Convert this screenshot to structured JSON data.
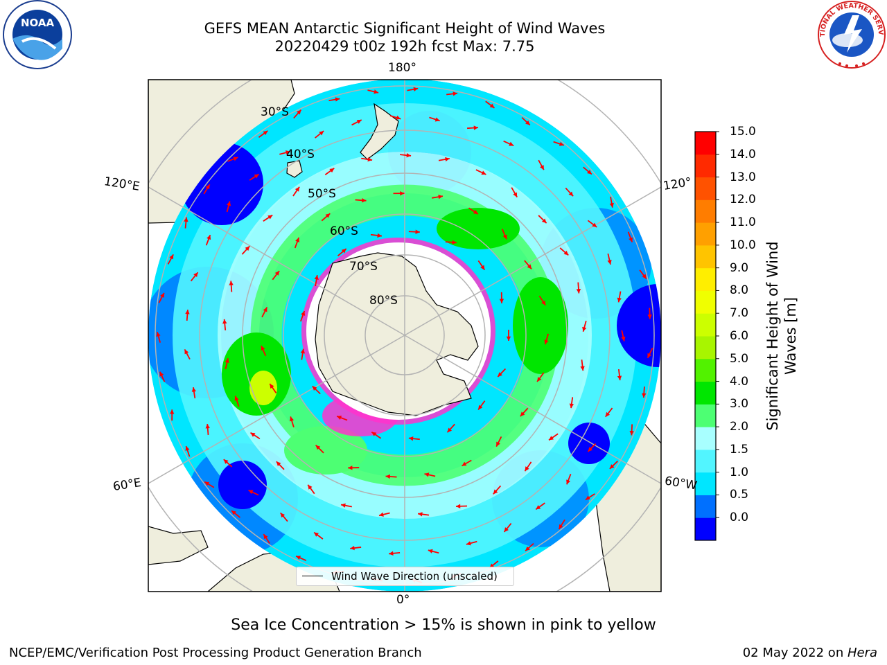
{
  "title": {
    "line1": "GEFS MEAN Antarctic Significant Height of Wind Waves",
    "line2": "20220429 t00z 192h fcst   Max: 7.75"
  },
  "logos": {
    "noaa_text": "NOAA",
    "nws_text": "NATIONAL WEATHER SERVICE"
  },
  "map": {
    "projection": "south-polar-stereographic",
    "longitude_labels": {
      "top": "180°",
      "bottom": "0°",
      "left_upper": "120°E",
      "left_lower": "60°E",
      "right_upper": "120°",
      "right_lower": "60°W"
    },
    "latitude_labels": [
      "30°S",
      "40°S",
      "50°S",
      "60°S",
      "70°S",
      "80°S"
    ],
    "legend_label": "Wind Wave Direction (unscaled)",
    "arrow_color": "#ff0000"
  },
  "colorbar": {
    "title_line1": "Significant Height of Wind",
    "title_line2": "Waves [m]",
    "ticks": [
      "15.0",
      "14.0",
      "13.0",
      "12.0",
      "11.0",
      "10.0",
      "9.0",
      "8.0",
      "7.0",
      "6.0",
      "5.0",
      "4.0",
      "3.0",
      "2.0",
      "1.5",
      "1.0",
      "0.5",
      "0.0"
    ],
    "colors_bottom_to_top": [
      "#0000ff",
      "#0070ff",
      "#00e6ff",
      "#52f5ff",
      "#a8ffff",
      "#4dff73",
      "#00e600",
      "#52f200",
      "#a8f500",
      "#ccff00",
      "#f0ff00",
      "#ffee00",
      "#ffc400",
      "#ffa000",
      "#ff7d00",
      "#ff5200",
      "#ff2a00",
      "#ff0000"
    ]
  },
  "caption": "Sea Ice Concentration > 15% is shown in pink to yellow",
  "footer": {
    "left": "NCEP/EMC/Verification Post Processing Product Generation Branch",
    "date": "02 May 2022 on ",
    "machine": "Hera"
  }
}
